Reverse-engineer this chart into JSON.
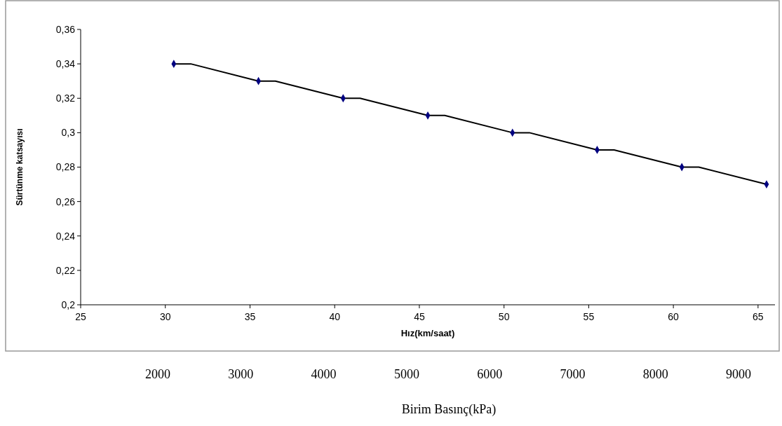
{
  "chart_data": {
    "type": "line",
    "xlabel": "Hız(km/saat)",
    "ylabel": "Sürtünme katsayısı",
    "x2label": "Birim Basınç(kPa)",
    "xlim": [
      25,
      66
    ],
    "xticks": [
      25,
      30,
      35,
      40,
      45,
      50,
      55,
      60,
      65
    ],
    "ylim": [
      0.2,
      0.36
    ],
    "yticks": [
      {
        "value": 0.2,
        "label": "0,2"
      },
      {
        "value": 0.22,
        "label": "0,22"
      },
      {
        "value": 0.24,
        "label": "0,24"
      },
      {
        "value": 0.26,
        "label": "0,26"
      },
      {
        "value": 0.28,
        "label": "0,28"
      },
      {
        "value": 0.3,
        "label": "0,3"
      },
      {
        "value": 0.32,
        "label": "0,32"
      },
      {
        "value": 0.34,
        "label": "0,34"
      },
      {
        "value": 0.36,
        "label": "0,36"
      }
    ],
    "x2lim": [
      165,
      9490
    ],
    "x2ticks": [
      2000,
      3000,
      4000,
      5000,
      6000,
      7000,
      8000,
      9000
    ],
    "grid": false,
    "series": [
      {
        "type": "line",
        "color": "#000000",
        "marker": "none",
        "x": [
          30.5,
          31.5,
          35.5,
          36.5,
          40.5,
          41.5,
          45.5,
          46.5,
          50.5,
          51.5,
          55.5,
          56.5,
          60.5,
          61.5,
          65.5
        ],
        "values": [
          0.34,
          0.34,
          0.33,
          0.33,
          0.32,
          0.32,
          0.31,
          0.31,
          0.3,
          0.3,
          0.29,
          0.29,
          0.28,
          0.28,
          0.27
        ]
      },
      {
        "type": "scatter",
        "color": "#000080",
        "marker": "diamond",
        "x": [
          30.5,
          35.5,
          40.5,
          45.5,
          50.5,
          55.5,
          60.5,
          65.5
        ],
        "values": [
          0.34,
          0.33,
          0.32,
          0.31,
          0.3,
          0.29,
          0.28,
          0.27
        ]
      }
    ]
  }
}
